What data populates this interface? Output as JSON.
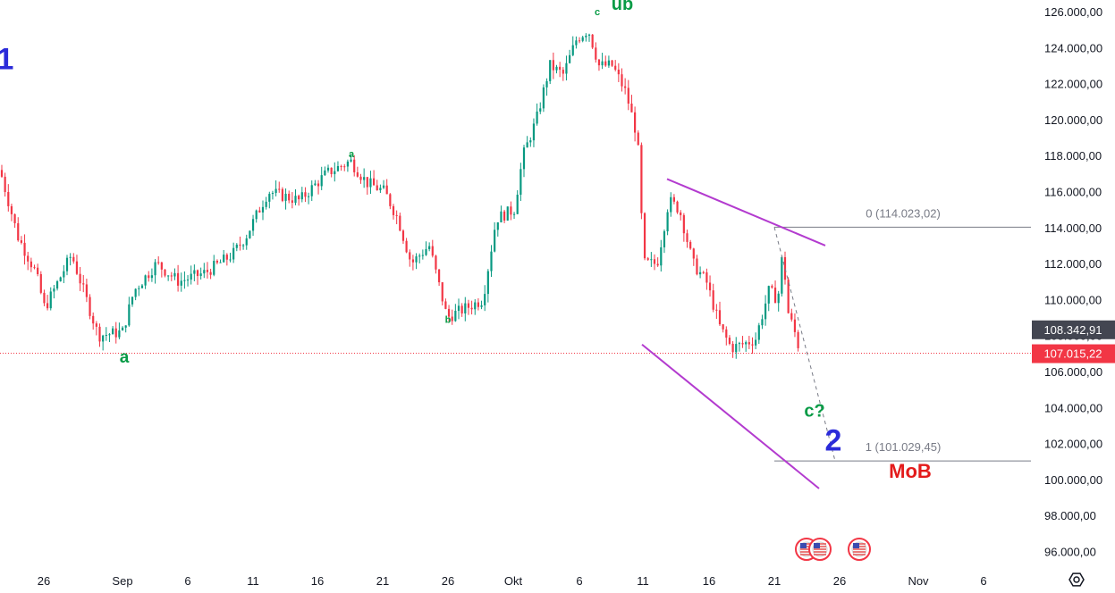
{
  "chart_data": {
    "type": "candlestick",
    "price_axis": {
      "ticks": [
        "96.000,00",
        "98.000,00",
        "100.000,00",
        "102.000,00",
        "104.000,00",
        "106.000,00",
        "108.000,00",
        "110.000,00",
        "112.000,00",
        "114.000,00",
        "116.000,00",
        "118.000,00",
        "120.000,00",
        "122.000,00",
        "124.000,00",
        "126.000,00"
      ],
      "ylim": [
        94900,
        126600
      ]
    },
    "time_axis": {
      "ticks": [
        "26",
        "Sep",
        "6",
        "11",
        "16",
        "21",
        "26",
        "Okt",
        "6",
        "11",
        "16",
        "21",
        "26",
        "Nov",
        "6"
      ]
    },
    "price_tags": [
      {
        "text": "108.342,91",
        "value": 108342.91,
        "color": "#434651"
      },
      {
        "text": "107.015,22",
        "value": 107015.22,
        "color": "#f23645"
      }
    ],
    "current_price_line": 107015.22,
    "fib_levels": [
      {
        "label": "0 (114.023,02)",
        "value": 114023.02
      },
      {
        "label": "1 (101.029,45)",
        "value": 101029.45
      }
    ],
    "wave_labels": [
      {
        "text": "1",
        "color": "#2b2bd9",
        "size": "xl",
        "anchor": "left-edge",
        "price": 122800
      },
      {
        "text": "a",
        "color": "#089b46",
        "size": "md",
        "price": 106500
      },
      {
        "text": "a",
        "color": "#089b46",
        "size": "sm",
        "price": 117900
      },
      {
        "text": "b",
        "color": "#089b46",
        "size": "sm",
        "price": 108700
      },
      {
        "text": "c",
        "color": "#089b46",
        "size": "sm",
        "price": 125800
      },
      {
        "text": "üb",
        "color": "#089b46",
        "size": "lg",
        "price": 126100
      },
      {
        "text": "c?",
        "color": "#089b46",
        "size": "lg",
        "price": 103500
      },
      {
        "text": "2",
        "color": "#2b2bd9",
        "size": "xl",
        "price": 101600
      },
      {
        "text": "MoB",
        "color": "#e31b1b",
        "size": "mob",
        "price": 100100
      }
    ],
    "trendlines_color": "#b33bcf",
    "bull_color": "#089981",
    "bear_color": "#f23645",
    "candle_color_mode": "alternating"
  }
}
